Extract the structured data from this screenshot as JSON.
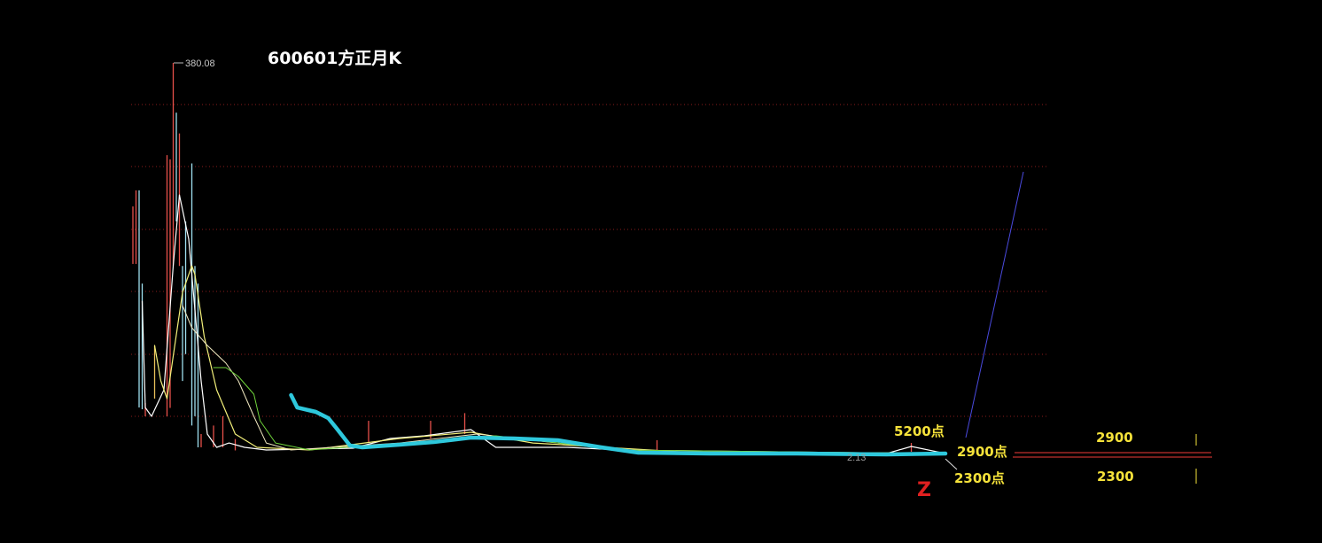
{
  "chart_data": {
    "type": "line",
    "title": "600601方正月K",
    "xlabel": "",
    "ylabel": "",
    "ylim": [
      0,
      380.08
    ],
    "grid": true,
    "high_label": "380.08",
    "low_label": "2.13",
    "candles": [
      {
        "i": 0,
        "high": 241.5,
        "low": 186,
        "color": "#e8504a"
      },
      {
        "i": 1,
        "high": 257,
        "low": 186,
        "color": "#e8504a"
      },
      {
        "i": 2,
        "high": 257,
        "low": 47.4,
        "color": "#9fe0f0"
      },
      {
        "i": 3,
        "high": 167,
        "low": 45.7,
        "color": "#9fe0f0"
      },
      {
        "i": 4,
        "high": 51.7,
        "low": 38.9,
        "color": "#e8504a"
      },
      {
        "i": 7,
        "high": 107,
        "low": 56,
        "color": "#e8c05a"
      },
      {
        "i": 11,
        "high": 291,
        "low": 38.9,
        "color": "#e8504a"
      },
      {
        "i": 12,
        "high": 287,
        "low": 47,
        "color": "#e8504a"
      },
      {
        "i": 13,
        "high": 380.08,
        "low": 184,
        "color": "#e8504a"
      },
      {
        "i": 14,
        "high": 332,
        "low": 227,
        "color": "#9fe0f0"
      },
      {
        "i": 15,
        "high": 312,
        "low": 184,
        "color": "#e8504a"
      },
      {
        "i": 16,
        "high": 184,
        "low": 73,
        "color": "#9fe0f0"
      },
      {
        "i": 17,
        "high": 227,
        "low": 99,
        "color": "#9fe0f0"
      },
      {
        "i": 19,
        "high": 283,
        "low": 30,
        "color": "#9fe0f0"
      },
      {
        "i": 20,
        "high": 184,
        "low": 39,
        "color": "#9fe0f0"
      },
      {
        "i": 21,
        "high": 167,
        "low": 9,
        "color": "#9fe0f0"
      },
      {
        "i": 22,
        "high": 21.8,
        "low": 9,
        "color": "#e8504a"
      },
      {
        "i": 26,
        "high": 30,
        "low": 9,
        "color": "#e8504a"
      },
      {
        "i": 29,
        "high": 39,
        "low": 9,
        "color": "#e8504a"
      },
      {
        "i": 33,
        "high": 17,
        "low": 6,
        "color": "#e8504a"
      },
      {
        "i": 76,
        "high": 34.6,
        "low": 13.2,
        "color": "#e8504a"
      },
      {
        "i": 96,
        "high": 34.6,
        "low": 17.5,
        "color": "#e8504a"
      },
      {
        "i": 107,
        "high": 42,
        "low": 21.8,
        "color": "#e8504a"
      },
      {
        "i": 169,
        "high": 15.8,
        "low": 5.5,
        "color": "#e8504a"
      },
      {
        "i": 251,
        "high": 13.2,
        "low": 4.7,
        "color": "#e8504a"
      }
    ],
    "series": [
      {
        "color": "#ffffff",
        "width": 1.2,
        "points": [
          [
            3,
            150
          ],
          [
            4,
            47.4
          ],
          [
            6,
            38.9
          ],
          [
            10,
            64.5
          ],
          [
            13,
            184.2
          ],
          [
            15,
            252.6
          ],
          [
            18,
            209.9
          ],
          [
            20,
            141.5
          ],
          [
            22,
            73.1
          ],
          [
            24,
            21.8
          ],
          [
            27,
            9
          ],
          [
            31,
            13.2
          ],
          [
            36,
            9
          ],
          [
            43,
            6.4
          ],
          [
            71,
            8.1
          ],
          [
            83,
            17.5
          ],
          [
            94,
            20.1
          ],
          [
            109,
            26.1
          ],
          [
            117,
            9
          ],
          [
            140,
            9
          ],
          [
            169,
            4.7
          ],
          [
            243,
            3
          ],
          [
            251,
            9.8
          ],
          [
            262,
            3
          ]
        ]
      },
      {
        "color": "#f3f07a",
        "width": 1.2,
        "points": [
          [
            7,
            107.3
          ],
          [
            9,
            73.1
          ],
          [
            11,
            56
          ],
          [
            16,
            158.6
          ],
          [
            19,
            184.2
          ],
          [
            20,
            175.7
          ],
          [
            23,
            115.8
          ],
          [
            27,
            64.5
          ],
          [
            33,
            21.8
          ],
          [
            40,
            9
          ],
          [
            57,
            6.4
          ],
          [
            86,
            17.5
          ],
          [
            109,
            23.5
          ],
          [
            129,
            13.2
          ],
          [
            186,
            3
          ],
          [
            262,
            3.8
          ]
        ]
      },
      {
        "color": "#f0e8c0",
        "width": 1,
        "points": [
          [
            16,
            145.8
          ],
          [
            19,
            124.4
          ],
          [
            24,
            107.3
          ],
          [
            30,
            90.2
          ],
          [
            34,
            73.1
          ],
          [
            39,
            38.9
          ],
          [
            43,
            13.2
          ],
          [
            51,
            6.4
          ],
          [
            86,
            13.2
          ],
          [
            111,
            21.8
          ],
          [
            157,
            6.4
          ],
          [
            262,
            3
          ]
        ]
      },
      {
        "color": "#6fd33a",
        "width": 1,
        "points": [
          [
            26,
            85.9
          ],
          [
            30,
            85.9
          ],
          [
            34,
            77.4
          ],
          [
            39,
            60.3
          ],
          [
            41,
            34.6
          ],
          [
            46,
            13.2
          ],
          [
            57,
            6.4
          ],
          [
            100,
            15.8
          ],
          [
            117,
            20.1
          ],
          [
            157,
            6.4
          ],
          [
            262,
            3
          ]
        ]
      },
      {
        "color": "#2ec8dc",
        "width": 4.5,
        "points": [
          [
            51,
            59.4
          ],
          [
            53,
            47.4
          ],
          [
            59,
            43.2
          ],
          [
            63,
            37.2
          ],
          [
            66,
            26.1
          ],
          [
            70,
            10.7
          ],
          [
            74,
            9
          ],
          [
            86,
            11.5
          ],
          [
            97,
            14.1
          ],
          [
            109,
            18.4
          ],
          [
            123,
            17.5
          ],
          [
            137,
            15.8
          ],
          [
            151,
            9
          ],
          [
            163,
            3.8
          ],
          [
            186,
            3
          ],
          [
            214,
            3
          ],
          [
            243,
            2.1
          ],
          [
            262,
            3
          ]
        ]
      }
    ],
    "annotations": {
      "target_high": "5200点",
      "resistance": "2900点",
      "support": "2300点",
      "marker": "Z",
      "right_upper": "2900",
      "right_lower": "2300"
    },
    "colors": {
      "grid": "#8a1c1c",
      "projection": "#4a4adf",
      "levels": "#c0302c",
      "label": "#f5e23a",
      "marker": "#e02020"
    }
  }
}
